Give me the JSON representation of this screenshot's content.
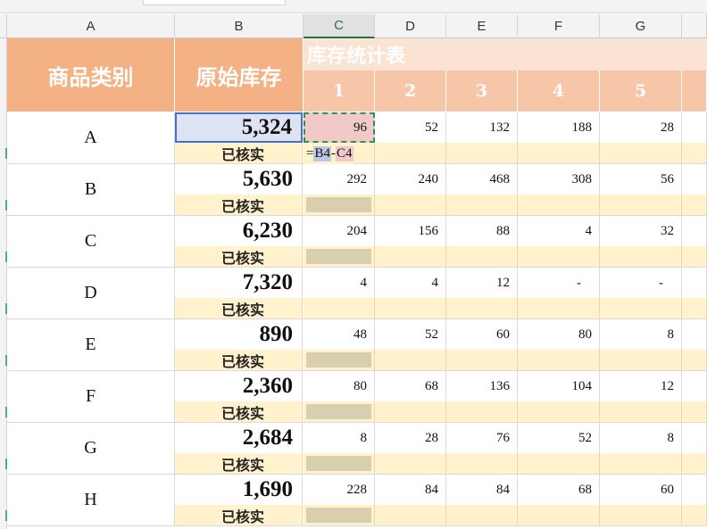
{
  "columns": [
    "A",
    "B",
    "C",
    "D",
    "E",
    "F",
    "G"
  ],
  "active_column": "C",
  "header": {
    "category_label": "商品类别",
    "original_stock_label": "原始库存",
    "title": "库存统计表",
    "days": [
      "1",
      "2",
      "3",
      "4",
      "5"
    ]
  },
  "verified_label": "已核实",
  "rows": [
    {
      "category": "A",
      "stock": "5,324",
      "values": [
        "96",
        "52",
        "132",
        "188",
        "28"
      ]
    },
    {
      "category": "B",
      "stock": "5,630",
      "values": [
        "292",
        "240",
        "468",
        "308",
        "56"
      ]
    },
    {
      "category": "C",
      "stock": "6,230",
      "values": [
        "204",
        "156",
        "88",
        "4",
        "32"
      ]
    },
    {
      "category": "D",
      "stock": "7,320",
      "values": [
        "4",
        "4",
        "12",
        "-",
        "-"
      ]
    },
    {
      "category": "E",
      "stock": "890",
      "values": [
        "48",
        "52",
        "60",
        "80",
        "8"
      ]
    },
    {
      "category": "F",
      "stock": "2,360",
      "values": [
        "80",
        "68",
        "136",
        "104",
        "12"
      ]
    },
    {
      "category": "G",
      "stock": "2,684",
      "values": [
        "8",
        "28",
        "76",
        "52",
        "8"
      ]
    },
    {
      "category": "H",
      "stock": "1,690",
      "values": [
        "228",
        "84",
        "84",
        "68",
        "60"
      ]
    }
  ],
  "formula": {
    "prefix": "=",
    "ref1": "B4",
    "op": " - ",
    "ref2": "C4"
  },
  "colors": {
    "header_orange": "#f4b183",
    "title_band": "#fbe3d4",
    "day_header": "#f7c6a9",
    "verified_fill": "#fff2cc",
    "selection_blue": "#4472c4",
    "copy_dash_green": "#2f8f5b"
  }
}
